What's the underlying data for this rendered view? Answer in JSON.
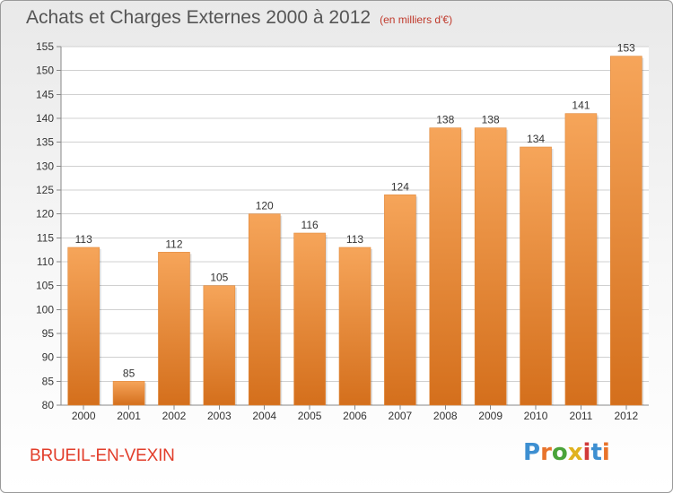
{
  "header": {
    "title": "Achats et Charges Externes 2000 à 2012",
    "unit": "(en milliers d'€)"
  },
  "footer": {
    "town": "BRUEIL-EN-VEXIN",
    "logo_text": "Proxiti",
    "logo_colors": [
      "#3d8fd1",
      "#e8732b",
      "#4aa33a",
      "#e0b21f",
      "#d13a3a",
      "#3d8fd1",
      "#e8732b"
    ]
  },
  "colors": {
    "bar_top": "#f6a55a",
    "bar_bottom": "#d46f1c",
    "title": "#555555",
    "town": "#e23d2a"
  },
  "chart_data": {
    "type": "bar",
    "title": "Achats et Charges Externes 2000 à 2012",
    "subtitle": "(en milliers d'€)",
    "categories": [
      "2000",
      "2001",
      "2002",
      "2003",
      "2004",
      "2005",
      "2006",
      "2007",
      "2008",
      "2009",
      "2010",
      "2011",
      "2012"
    ],
    "values": [
      113,
      85,
      112,
      105,
      120,
      116,
      113,
      124,
      138,
      138,
      134,
      141,
      153
    ],
    "ylim": [
      80,
      155
    ],
    "yticks": [
      80,
      85,
      90,
      95,
      100,
      105,
      110,
      115,
      120,
      125,
      130,
      135,
      140,
      145,
      150,
      155
    ],
    "grid": true,
    "xlabel": "",
    "ylabel": ""
  }
}
